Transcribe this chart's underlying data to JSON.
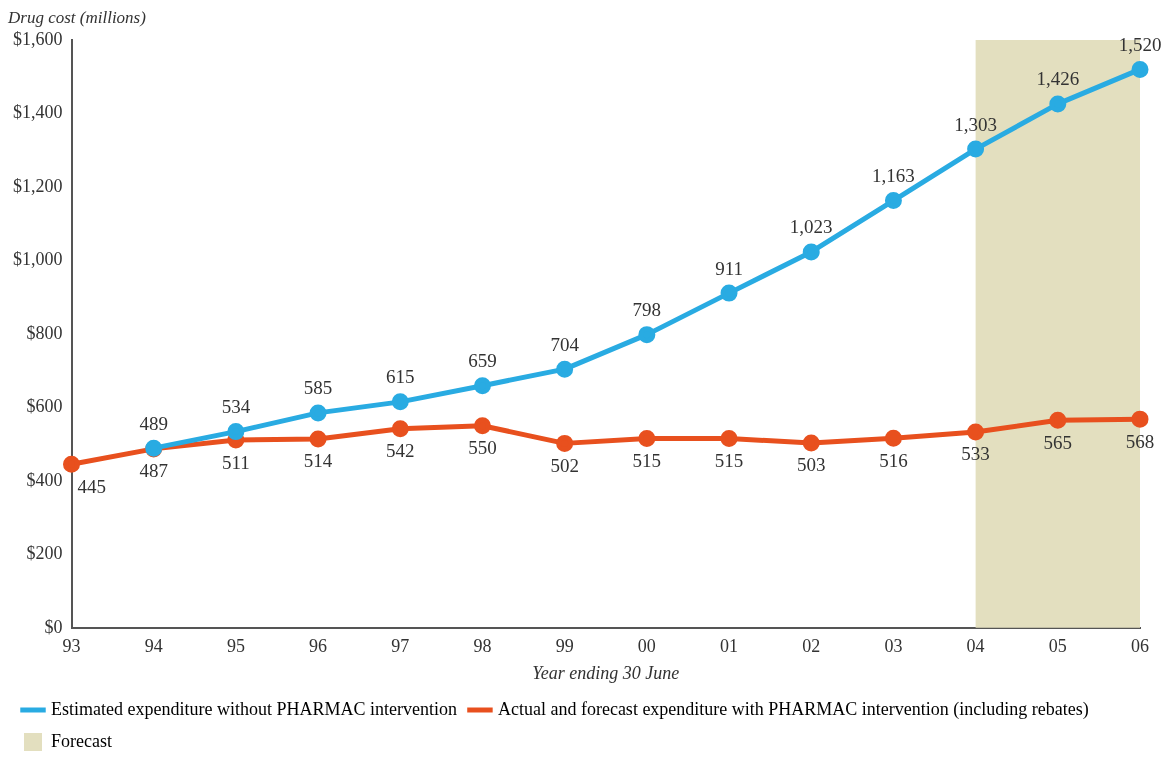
{
  "chart_data": {
    "type": "line",
    "ylabel": "Drug cost (millions)",
    "xlabel": "Year ending 30 June",
    "categories": [
      "93",
      "94",
      "95",
      "96",
      "97",
      "98",
      "99",
      "00",
      "01",
      "02",
      "03",
      "04",
      "05",
      "06"
    ],
    "series": [
      {
        "name": "Estimated expenditure without PHARMAC intervention",
        "color": "#29abe2",
        "values": [
          null,
          489,
          534,
          585,
          615,
          659,
          704,
          798,
          911,
          1023,
          1163,
          1303,
          1426,
          1520
        ],
        "value_labels": [
          null,
          "489",
          "534",
          "585",
          "615",
          "659",
          "704",
          "798",
          "911",
          "1,023",
          "1,163",
          "1,303",
          "1,426",
          "1,520"
        ]
      },
      {
        "name": "Actual and forecast expenditure with PHARMAC intervention (including rebates)",
        "color": "#e8501e",
        "values": [
          445,
          487,
          511,
          514,
          542,
          550,
          502,
          515,
          515,
          503,
          516,
          533,
          565,
          568
        ],
        "value_labels": [
          "445",
          "487",
          "511",
          "514",
          "542",
          "550",
          "502",
          "515",
          "515",
          "503",
          "516",
          "533",
          "565",
          "568"
        ]
      }
    ],
    "bands": [
      {
        "axis": "x",
        "from": "04",
        "to": "06",
        "label": "Forecast",
        "color": "#e3dfbf"
      }
    ],
    "ylim": [
      0,
      1600
    ],
    "yticks": [
      {
        "value": 0,
        "label": "$0"
      },
      {
        "value": 200,
        "label": "$200"
      },
      {
        "value": 400,
        "label": "$400"
      },
      {
        "value": 600,
        "label": "$600"
      },
      {
        "value": 800,
        "label": "$800"
      },
      {
        "value": 1000,
        "label": "$1,000"
      },
      {
        "value": 1200,
        "label": "$1,200"
      },
      {
        "value": 1400,
        "label": "$1,400"
      },
      {
        "value": 1600,
        "label": "$1,600"
      }
    ],
    "grid": false,
    "legend": "bottom",
    "marker": "circle",
    "line_style": "solid"
  }
}
